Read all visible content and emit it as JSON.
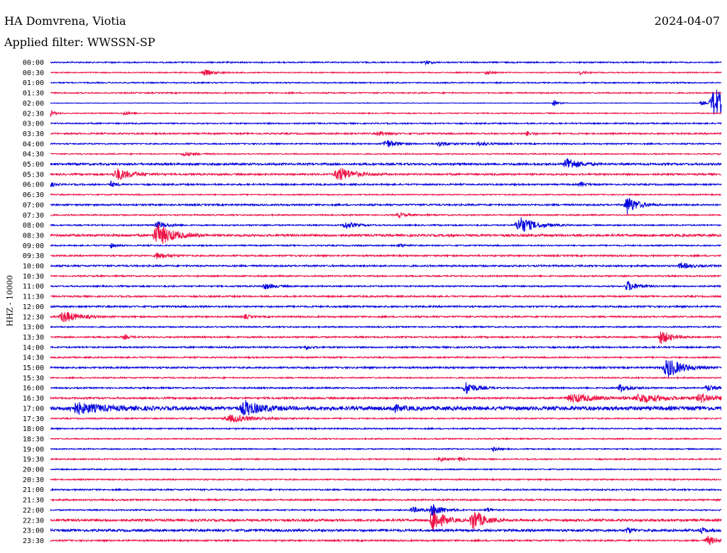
{
  "header": {
    "station": "HA Domvrena, Viotia",
    "date": "2024-04-07",
    "filter": "Applied filter: WWSSN-SP"
  },
  "channel_label": "HHZ - 10000",
  "colors": {
    "even_trace": "#0000dd",
    "odd_trace": "#ee1144"
  },
  "rows": [
    {
      "time": "00:00",
      "noise": 1.0,
      "events": [
        [
          0.56,
          3,
          1
        ]
      ]
    },
    {
      "time": "00:30",
      "noise": 0.8,
      "events": [
        [
          0.23,
          4,
          2
        ],
        [
          0.65,
          3,
          1
        ],
        [
          0.79,
          3,
          1
        ]
      ]
    },
    {
      "time": "01:00",
      "noise": 0.9,
      "events": []
    },
    {
      "time": "01:30",
      "noise": 1.0,
      "events": []
    },
    {
      "time": "02:00",
      "noise": 0.5,
      "events": [
        [
          0.75,
          4,
          1
        ],
        [
          0.97,
          3,
          1
        ],
        [
          0.99,
          22,
          3
        ]
      ]
    },
    {
      "time": "02:30",
      "noise": 0.8,
      "events": [
        [
          0.0,
          4,
          1
        ],
        [
          0.11,
          3,
          1
        ]
      ]
    },
    {
      "time": "03:00",
      "noise": 1.0,
      "events": []
    },
    {
      "time": "03:30",
      "noise": 1.2,
      "events": [
        [
          0.49,
          3,
          2
        ],
        [
          0.71,
          3,
          1
        ]
      ]
    },
    {
      "time": "04:00",
      "noise": 1.0,
      "events": [
        [
          0.5,
          6,
          2
        ],
        [
          0.58,
          3,
          2
        ],
        [
          0.64,
          3,
          2
        ]
      ]
    },
    {
      "time": "04:30",
      "noise": 0.9,
      "events": [
        [
          0.2,
          3,
          2
        ]
      ]
    },
    {
      "time": "05:00",
      "noise": 1.6,
      "events": [
        [
          0.77,
          10,
          2
        ]
      ]
    },
    {
      "time": "05:30",
      "noise": 1.4,
      "events": [
        [
          0.1,
          8,
          3
        ],
        [
          0.43,
          10,
          3
        ]
      ]
    },
    {
      "time": "06:00",
      "noise": 1.2,
      "events": [
        [
          0.0,
          3,
          1
        ],
        [
          0.09,
          4,
          1
        ],
        [
          0.79,
          4,
          1
        ]
      ]
    },
    {
      "time": "06:30",
      "noise": 0.9,
      "events": []
    },
    {
      "time": "07:00",
      "noise": 1.3,
      "events": [
        [
          0.86,
          13,
          2
        ]
      ]
    },
    {
      "time": "07:30",
      "noise": 1.0,
      "events": [
        [
          0.52,
          3,
          2
        ]
      ]
    },
    {
      "time": "08:00",
      "noise": 1.0,
      "events": [
        [
          0.16,
          5,
          2
        ],
        [
          0.44,
          5,
          2
        ],
        [
          0.7,
          12,
          3
        ]
      ]
    },
    {
      "time": "08:30",
      "noise": 1.8,
      "events": [
        [
          0.16,
          16,
          3
        ]
      ]
    },
    {
      "time": "09:00",
      "noise": 1.0,
      "events": [
        [
          0.09,
          3,
          1
        ],
        [
          0.52,
          3,
          1
        ]
      ]
    },
    {
      "time": "09:30",
      "noise": 1.2,
      "events": [
        [
          0.16,
          5,
          2
        ]
      ]
    },
    {
      "time": "10:00",
      "noise": 1.3,
      "events": [
        [
          0.94,
          4,
          2
        ]
      ]
    },
    {
      "time": "10:30",
      "noise": 1.1,
      "events": []
    },
    {
      "time": "11:00",
      "noise": 1.1,
      "events": [
        [
          0.32,
          4,
          2
        ],
        [
          0.86,
          7,
          2
        ]
      ]
    },
    {
      "time": "11:30",
      "noise": 1.2,
      "events": []
    },
    {
      "time": "12:00",
      "noise": 1.3,
      "events": []
    },
    {
      "time": "12:30",
      "noise": 1.2,
      "events": [
        [
          0.02,
          8,
          3
        ],
        [
          0.29,
          3,
          1
        ]
      ]
    },
    {
      "time": "13:00",
      "noise": 1.0,
      "events": []
    },
    {
      "time": "13:30",
      "noise": 1.2,
      "events": [
        [
          0.11,
          3,
          1
        ],
        [
          0.91,
          10,
          2
        ]
      ]
    },
    {
      "time": "14:00",
      "noise": 1.2,
      "events": [
        [
          0.38,
          3,
          1
        ]
      ]
    },
    {
      "time": "14:30",
      "noise": 1.1,
      "events": []
    },
    {
      "time": "15:00",
      "noise": 1.3,
      "events": [
        [
          0.92,
          14,
          3
        ]
      ]
    },
    {
      "time": "15:30",
      "noise": 1.0,
      "events": []
    },
    {
      "time": "16:00",
      "noise": 1.1,
      "events": [
        [
          0.62,
          9,
          2
        ],
        [
          0.85,
          6,
          2
        ],
        [
          0.98,
          4,
          2
        ]
      ]
    },
    {
      "time": "16:30",
      "noise": 1.4,
      "events": [
        [
          0.78,
          6,
          5
        ],
        [
          0.88,
          6,
          5
        ],
        [
          0.97,
          6,
          3
        ]
      ]
    },
    {
      "time": "17:00",
      "noise": 3.0,
      "events": [
        [
          0.04,
          7,
          5
        ],
        [
          0.29,
          10,
          3
        ],
        [
          0.51,
          4,
          2
        ]
      ]
    },
    {
      "time": "17:30",
      "noise": 1.0,
      "events": [
        [
          0.27,
          5,
          5
        ]
      ]
    },
    {
      "time": "18:00",
      "noise": 1.0,
      "events": []
    },
    {
      "time": "18:30",
      "noise": 0.9,
      "events": []
    },
    {
      "time": "19:00",
      "noise": 0.9,
      "events": [
        [
          0.66,
          3,
          1
        ]
      ]
    },
    {
      "time": "19:30",
      "noise": 1.0,
      "events": [
        [
          0.58,
          4,
          1
        ],
        [
          0.61,
          3,
          1
        ]
      ]
    },
    {
      "time": "20:00",
      "noise": 0.9,
      "events": []
    },
    {
      "time": "20:30",
      "noise": 1.0,
      "events": []
    },
    {
      "time": "21:00",
      "noise": 1.1,
      "events": []
    },
    {
      "time": "21:30",
      "noise": 1.2,
      "events": []
    },
    {
      "time": "22:00",
      "noise": 1.0,
      "events": [
        [
          0.54,
          4,
          2
        ],
        [
          0.57,
          9,
          2
        ],
        [
          0.65,
          4,
          1
        ]
      ]
    },
    {
      "time": "22:30",
      "noise": 1.8,
      "events": [
        [
          0.57,
          18,
          2
        ],
        [
          0.63,
          16,
          2
        ]
      ]
    },
    {
      "time": "23:00",
      "noise": 1.8,
      "events": [
        [
          0.86,
          4,
          1
        ],
        [
          0.97,
          4,
          1
        ]
      ]
    },
    {
      "time": "23:30",
      "noise": 1.2,
      "events": [
        [
          0.98,
          6,
          2
        ]
      ]
    }
  ]
}
